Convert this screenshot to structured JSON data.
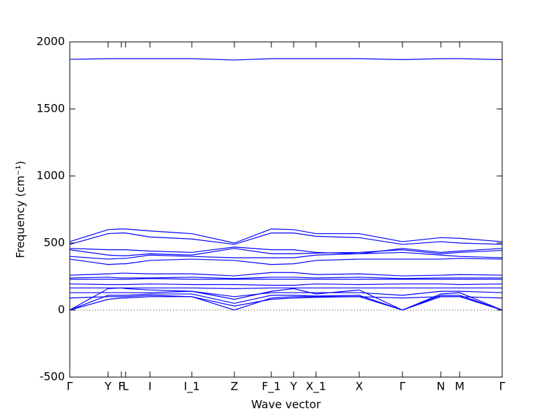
{
  "chart_data": {
    "type": "line",
    "xlabel": "Wave vector",
    "ylabel": "Frequency (cm⁻¹)",
    "x": [
      0,
      0.55,
      0.74,
      0.8,
      1.15,
      1.75,
      2.36,
      2.89,
      3.21,
      3.53,
      4.15,
      4.77,
      5.32,
      5.59,
      6.2
    ],
    "xlim": [
      0,
      6.2
    ],
    "xticks": [
      {
        "value": 0,
        "label": "Γ"
      },
      {
        "value": 0.55,
        "label": "Y"
      },
      {
        "value": 0.74,
        "label": "F"
      },
      {
        "value": 0.8,
        "label": "L"
      },
      {
        "value": 1.15,
        "label": "I"
      },
      {
        "value": 1.75,
        "label": "I_1"
      },
      {
        "value": 2.36,
        "label": "Z"
      },
      {
        "value": 2.89,
        "label": "F_1"
      },
      {
        "value": 3.21,
        "label": "Y"
      },
      {
        "value": 3.53,
        "label": "X_1"
      },
      {
        "value": 4.15,
        "label": "X"
      },
      {
        "value": 4.77,
        "label": "Γ"
      },
      {
        "value": 5.32,
        "label": "N"
      },
      {
        "value": 5.59,
        "label": "M"
      },
      {
        "value": 6.2,
        "label": "Γ"
      }
    ],
    "ylim": [
      -500,
      2000
    ],
    "yticks": [
      -500,
      0,
      500,
      1000,
      1500,
      2000
    ],
    "color": "#0000ff",
    "zero_line": true,
    "series": [
      {
        "values": [
          1870,
          1875,
          1875,
          1875,
          1875,
          1875,
          1865,
          1875,
          1875,
          1875,
          1875,
          1868,
          1875,
          1875,
          1868
        ]
      },
      {
        "values": [
          510,
          600,
          605,
          605,
          590,
          570,
          500,
          605,
          600,
          570,
          570,
          510,
          540,
          535,
          510
        ]
      },
      {
        "values": [
          490,
          570,
          575,
          575,
          545,
          530,
          490,
          575,
          575,
          550,
          540,
          490,
          510,
          500,
          490
        ]
      },
      {
        "values": [
          460,
          450,
          450,
          450,
          440,
          430,
          470,
          450,
          450,
          430,
          420,
          460,
          430,
          440,
          460
        ]
      },
      {
        "values": [
          450,
          410,
          405,
          405,
          420,
          410,
          460,
          420,
          420,
          425,
          430,
          450,
          420,
          430,
          445
        ]
      },
      {
        "values": [
          400,
          380,
          385,
          385,
          410,
          400,
          390,
          390,
          390,
          410,
          420,
          430,
          410,
          400,
          390
        ]
      },
      {
        "values": [
          380,
          340,
          345,
          345,
          370,
          380,
          370,
          340,
          345,
          370,
          380,
          380,
          380,
          385,
          380
        ]
      },
      {
        "values": [
          260,
          270,
          275,
          275,
          270,
          270,
          255,
          280,
          280,
          265,
          270,
          255,
          260,
          265,
          260
        ]
      },
      {
        "values": [
          240,
          245,
          240,
          240,
          240,
          245,
          235,
          245,
          245,
          240,
          245,
          235,
          240,
          240,
          240
        ]
      },
      {
        "values": [
          230,
          230,
          230,
          230,
          235,
          230,
          230,
          230,
          230,
          230,
          230,
          230,
          230,
          230,
          230
        ]
      },
      {
        "values": [
          195,
          190,
          190,
          190,
          195,
          190,
          190,
          185,
          185,
          195,
          190,
          195,
          195,
          190,
          195
        ]
      },
      {
        "values": [
          165,
          165,
          165,
          165,
          165,
          165,
          160,
          165,
          165,
          165,
          165,
          165,
          165,
          165,
          165
        ]
      },
      {
        "values": [
          130,
          130,
          130,
          130,
          130,
          140,
          100,
          130,
          130,
          130,
          130,
          110,
          140,
          140,
          130
        ]
      },
      {
        "values": [
          0,
          160,
          165,
          160,
          150,
          140,
          80,
          140,
          160,
          120,
          150,
          0,
          120,
          130,
          0
        ]
      },
      {
        "values": [
          0,
          110,
          110,
          110,
          120,
          120,
          50,
          110,
          110,
          105,
          110,
          0,
          110,
          110,
          0
        ]
      },
      {
        "values": [
          90,
          100,
          100,
          100,
          110,
          100,
          0,
          90,
          100,
          100,
          100,
          90,
          100,
          100,
          90
        ]
      },
      {
        "values": [
          0,
          80,
          90,
          90,
          100,
          100,
          30,
          80,
          90,
          95,
          100,
          0,
          100,
          100,
          0
        ]
      }
    ]
  }
}
